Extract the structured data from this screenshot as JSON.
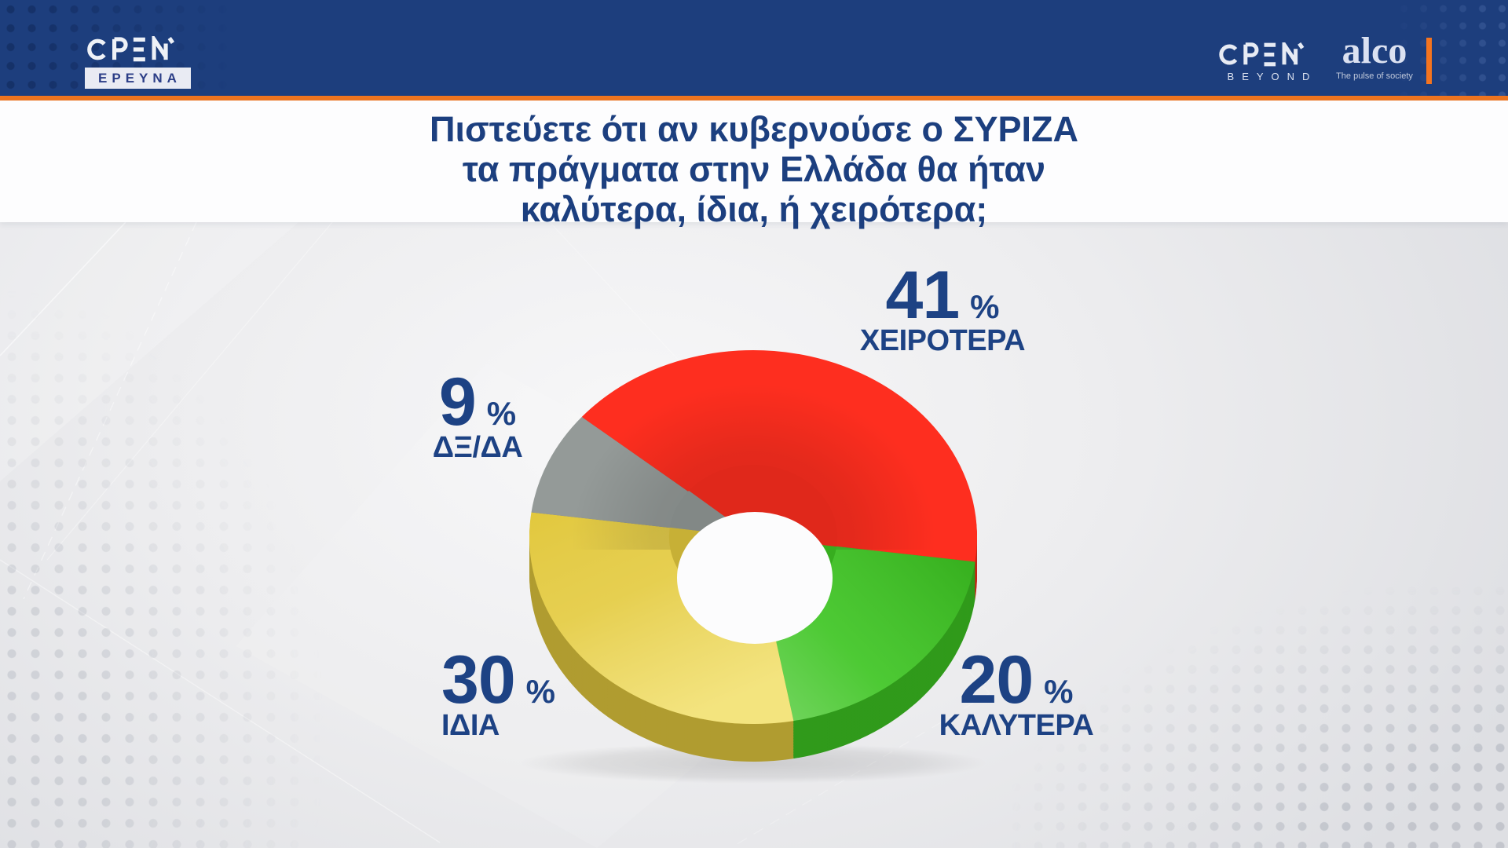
{
  "header": {
    "open_logo": "OPEN",
    "badge": "ΕΡΕΥΝΑ",
    "right": {
      "open_logo": "OPEN",
      "open_sub": "BEYOND",
      "alco_logo": "alco",
      "alco_tagline": "The pulse of society"
    }
  },
  "title": {
    "line1": "Πιστεύετε ότι αν κυβερνούσε ο ΣΥΡΙΖΑ",
    "line2": "τα πράγματα στην Ελλάδα θα ήταν",
    "line3": "καλύτερα, ίδια, ή χειρότερα;"
  },
  "chart_data": {
    "type": "pie",
    "subtype": "3d-donut",
    "title": "Πιστεύετε ότι αν κυβερνούσε ο ΣΥΡΙΖΑ τα πράγματα στην Ελλάδα θα ήταν καλύτερα, ίδια, ή χειρότερα;",
    "unit": "%",
    "start_angle_deg": -50,
    "direction": "clockwise",
    "slices": [
      {
        "label": "ΧΕΙΡΟΤΕΡΑ",
        "value": 41,
        "color": "#fe2e1f"
      },
      {
        "label": "ΚΑΛΥΤΕΡΑ",
        "value": 20,
        "color": "#3ec523"
      },
      {
        "label": "ΙΔΙΑ",
        "value": 30,
        "color": "#e2c83d"
      },
      {
        "label": "ΔΞ/ΔΑ",
        "value": 9,
        "color": "#949a98"
      }
    ]
  },
  "colors": {
    "header_blue": "#1d3e7d",
    "orange": "#f0751f",
    "title_navy": "#1c3f7f",
    "label_navy": "#1d4284",
    "badge_bg": "#e9ebf3",
    "badge_text": "#2c3e87",
    "alco_text": "#dbe1f1",
    "alco_tagline_text": "#c0c9db"
  }
}
